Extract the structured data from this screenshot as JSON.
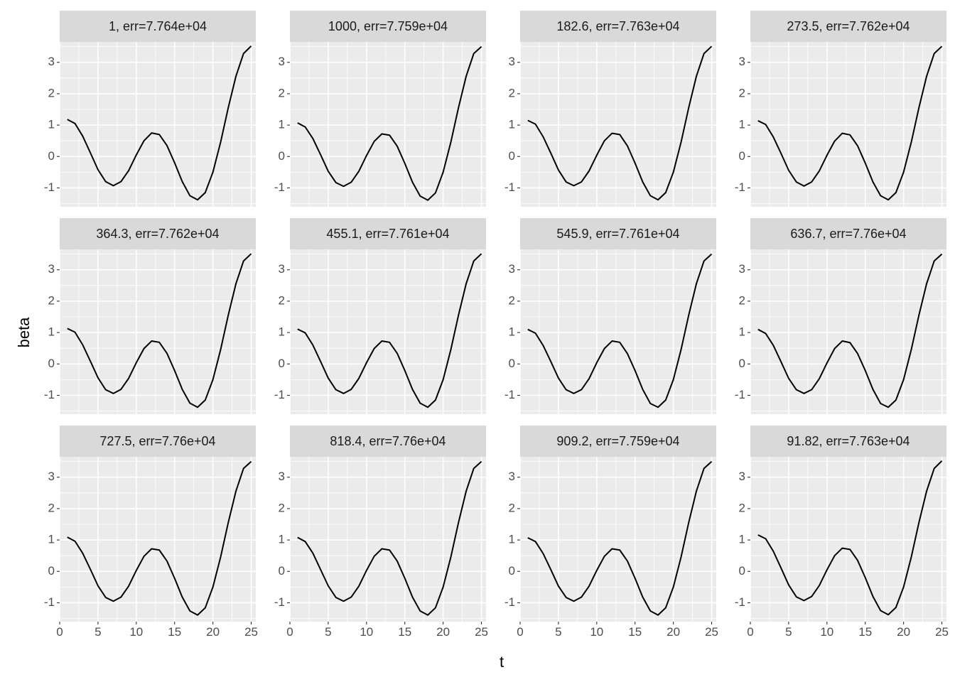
{
  "chart_data": {
    "type": "line",
    "layout": "facet_wrap",
    "nrow": 3,
    "ncol": 4,
    "xlabel": "t",
    "ylabel": "beta",
    "xlim": [
      0,
      25.6
    ],
    "ylim": [
      -1.6,
      3.65
    ],
    "x_ticks": [
      0,
      5,
      10,
      15,
      20,
      25
    ],
    "y_ticks": [
      -1,
      0,
      1,
      2,
      3
    ],
    "x_tick_labels": [
      "0",
      "5",
      "10",
      "15",
      "20",
      "25"
    ],
    "y_tick_labels": [
      "-1",
      "0",
      "1",
      "2",
      "3"
    ],
    "grid": true,
    "x": [
      1,
      2,
      3,
      4,
      5,
      6,
      7,
      8,
      9,
      10,
      11,
      12,
      13,
      14,
      15,
      16,
      17,
      18,
      19,
      20,
      21,
      22,
      23,
      24,
      25
    ],
    "panels": [
      {
        "label": "1, err=7.764e+04",
        "y": [
          1.18,
          1.05,
          0.65,
          0.12,
          -0.42,
          -0.8,
          -0.93,
          -0.8,
          -0.45,
          0.05,
          0.5,
          0.75,
          0.7,
          0.35,
          -0.2,
          -0.8,
          -1.25,
          -1.38,
          -1.15,
          -0.5,
          0.45,
          1.55,
          2.55,
          3.28,
          3.52
        ]
      },
      {
        "label": "1000, err=7.759e+04",
        "y": [
          1.07,
          0.94,
          0.57,
          0.06,
          -0.47,
          -0.83,
          -0.95,
          -0.82,
          -0.47,
          0.03,
          0.48,
          0.72,
          0.68,
          0.33,
          -0.22,
          -0.82,
          -1.26,
          -1.39,
          -1.16,
          -0.5,
          0.45,
          1.55,
          2.55,
          3.28,
          3.5
        ]
      },
      {
        "label": "182.6, err=7.763e+04",
        "y": [
          1.15,
          1.03,
          0.63,
          0.11,
          -0.43,
          -0.81,
          -0.93,
          -0.81,
          -0.46,
          0.04,
          0.5,
          0.74,
          0.7,
          0.34,
          -0.21,
          -0.81,
          -1.25,
          -1.38,
          -1.15,
          -0.5,
          0.45,
          1.55,
          2.55,
          3.28,
          3.51
        ]
      },
      {
        "label": "273.5, err=7.762e+04",
        "y": [
          1.14,
          1.02,
          0.62,
          0.1,
          -0.44,
          -0.81,
          -0.94,
          -0.81,
          -0.46,
          0.04,
          0.49,
          0.74,
          0.69,
          0.34,
          -0.21,
          -0.81,
          -1.25,
          -1.38,
          -1.15,
          -0.5,
          0.45,
          1.55,
          2.55,
          3.28,
          3.51
        ]
      },
      {
        "label": "364.3, err=7.762e+04",
        "y": [
          1.13,
          1.01,
          0.61,
          0.09,
          -0.44,
          -0.82,
          -0.94,
          -0.81,
          -0.46,
          0.04,
          0.49,
          0.73,
          0.69,
          0.34,
          -0.21,
          -0.81,
          -1.25,
          -1.38,
          -1.15,
          -0.5,
          0.45,
          1.55,
          2.55,
          3.28,
          3.51
        ]
      },
      {
        "label": "455.1, err=7.761e+04",
        "y": [
          1.11,
          0.99,
          0.6,
          0.08,
          -0.45,
          -0.82,
          -0.94,
          -0.81,
          -0.46,
          0.04,
          0.49,
          0.73,
          0.69,
          0.34,
          -0.21,
          -0.81,
          -1.25,
          -1.38,
          -1.15,
          -0.5,
          0.45,
          1.55,
          2.55,
          3.28,
          3.51
        ]
      },
      {
        "label": "545.9, err=7.761e+04",
        "y": [
          1.1,
          0.98,
          0.59,
          0.08,
          -0.45,
          -0.82,
          -0.94,
          -0.82,
          -0.47,
          0.04,
          0.49,
          0.73,
          0.69,
          0.33,
          -0.21,
          -0.81,
          -1.26,
          -1.38,
          -1.15,
          -0.5,
          0.45,
          1.55,
          2.55,
          3.28,
          3.5
        ]
      },
      {
        "label": "636.7, err=7.76e+04",
        "y": [
          1.1,
          0.97,
          0.59,
          0.07,
          -0.46,
          -0.82,
          -0.94,
          -0.82,
          -0.47,
          0.03,
          0.49,
          0.73,
          0.68,
          0.33,
          -0.21,
          -0.81,
          -1.26,
          -1.38,
          -1.15,
          -0.5,
          0.45,
          1.55,
          2.55,
          3.28,
          3.5
        ]
      },
      {
        "label": "727.5, err=7.76e+04",
        "y": [
          1.09,
          0.96,
          0.58,
          0.07,
          -0.46,
          -0.83,
          -0.95,
          -0.82,
          -0.47,
          0.03,
          0.48,
          0.72,
          0.68,
          0.33,
          -0.22,
          -0.82,
          -1.26,
          -1.39,
          -1.16,
          -0.5,
          0.45,
          1.55,
          2.55,
          3.28,
          3.5
        ]
      },
      {
        "label": "818.4, err=7.76e+04",
        "y": [
          1.08,
          0.95,
          0.58,
          0.06,
          -0.46,
          -0.83,
          -0.95,
          -0.82,
          -0.47,
          0.03,
          0.48,
          0.72,
          0.68,
          0.33,
          -0.22,
          -0.82,
          -1.26,
          -1.39,
          -1.16,
          -0.5,
          0.45,
          1.55,
          2.55,
          3.28,
          3.5
        ]
      },
      {
        "label": "909.2, err=7.759e+04",
        "y": [
          1.07,
          0.95,
          0.57,
          0.06,
          -0.47,
          -0.83,
          -0.95,
          -0.82,
          -0.47,
          0.03,
          0.48,
          0.72,
          0.68,
          0.33,
          -0.22,
          -0.82,
          -1.26,
          -1.39,
          -1.16,
          -0.5,
          0.45,
          1.55,
          2.55,
          3.28,
          3.5
        ]
      },
      {
        "label": "91.82, err=7.763e+04",
        "y": [
          1.16,
          1.04,
          0.64,
          0.11,
          -0.43,
          -0.81,
          -0.93,
          -0.8,
          -0.45,
          0.05,
          0.5,
          0.74,
          0.7,
          0.35,
          -0.2,
          -0.8,
          -1.25,
          -1.38,
          -1.15,
          -0.5,
          0.45,
          1.55,
          2.55,
          3.28,
          3.52
        ]
      }
    ]
  }
}
